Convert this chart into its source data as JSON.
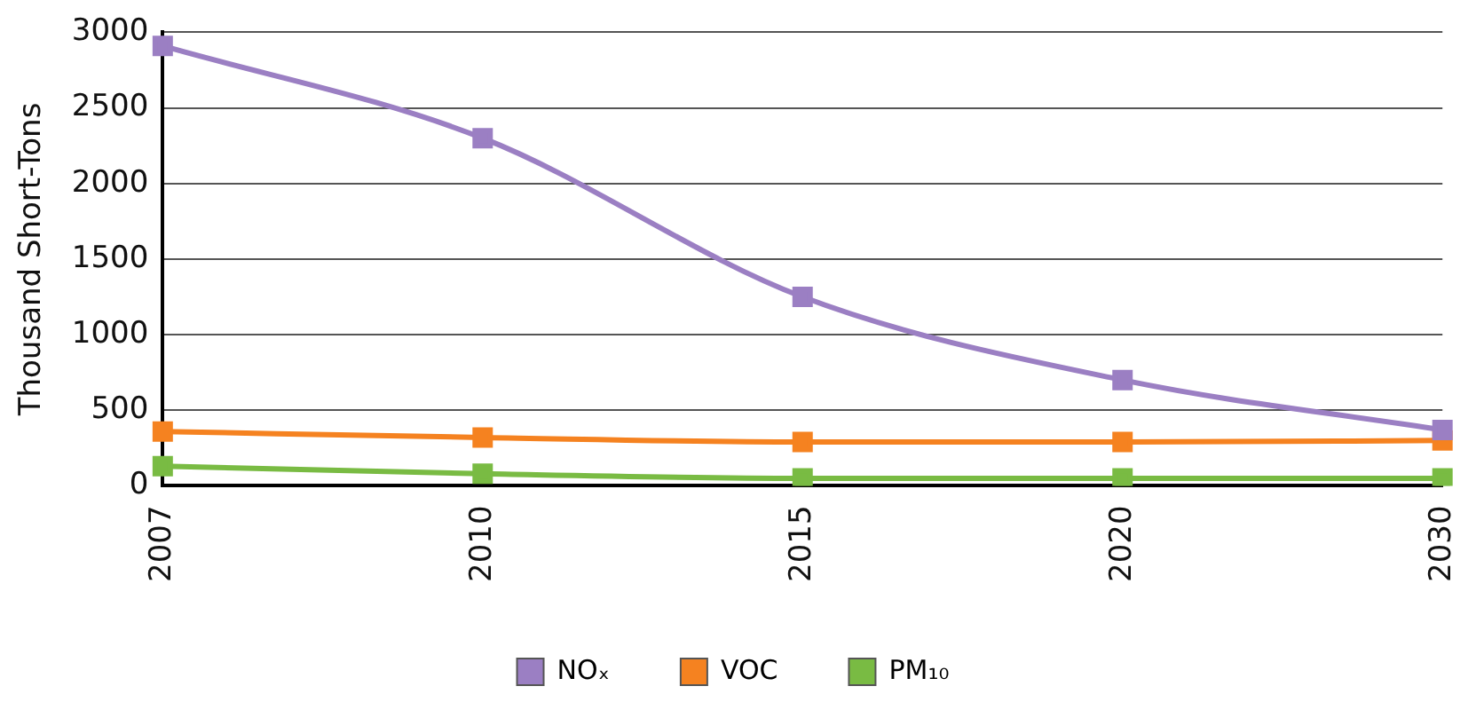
{
  "chart_data": {
    "type": "line",
    "ylabel": "Thousand Short-Tons",
    "categories": [
      "2007",
      "2010",
      "2015",
      "2020",
      "2030"
    ],
    "series": [
      {
        "name": "NOₓ",
        "color": "#9b7fc3",
        "values": [
          2910,
          2300,
          1250,
          700,
          370
        ]
      },
      {
        "name": "VOC",
        "color": "#f58220",
        "values": [
          360,
          320,
          290,
          290,
          300
        ]
      },
      {
        "name": "PM₁₀",
        "color": "#79bb43",
        "values": [
          130,
          80,
          50,
          50,
          50
        ]
      }
    ],
    "ylim": [
      0,
      3000
    ],
    "yticks": [
      0,
      500,
      1000,
      1500,
      2000,
      2500,
      3000
    ],
    "grid": "y",
    "legend": "bottom",
    "marker": "square",
    "line_style": "solid"
  }
}
